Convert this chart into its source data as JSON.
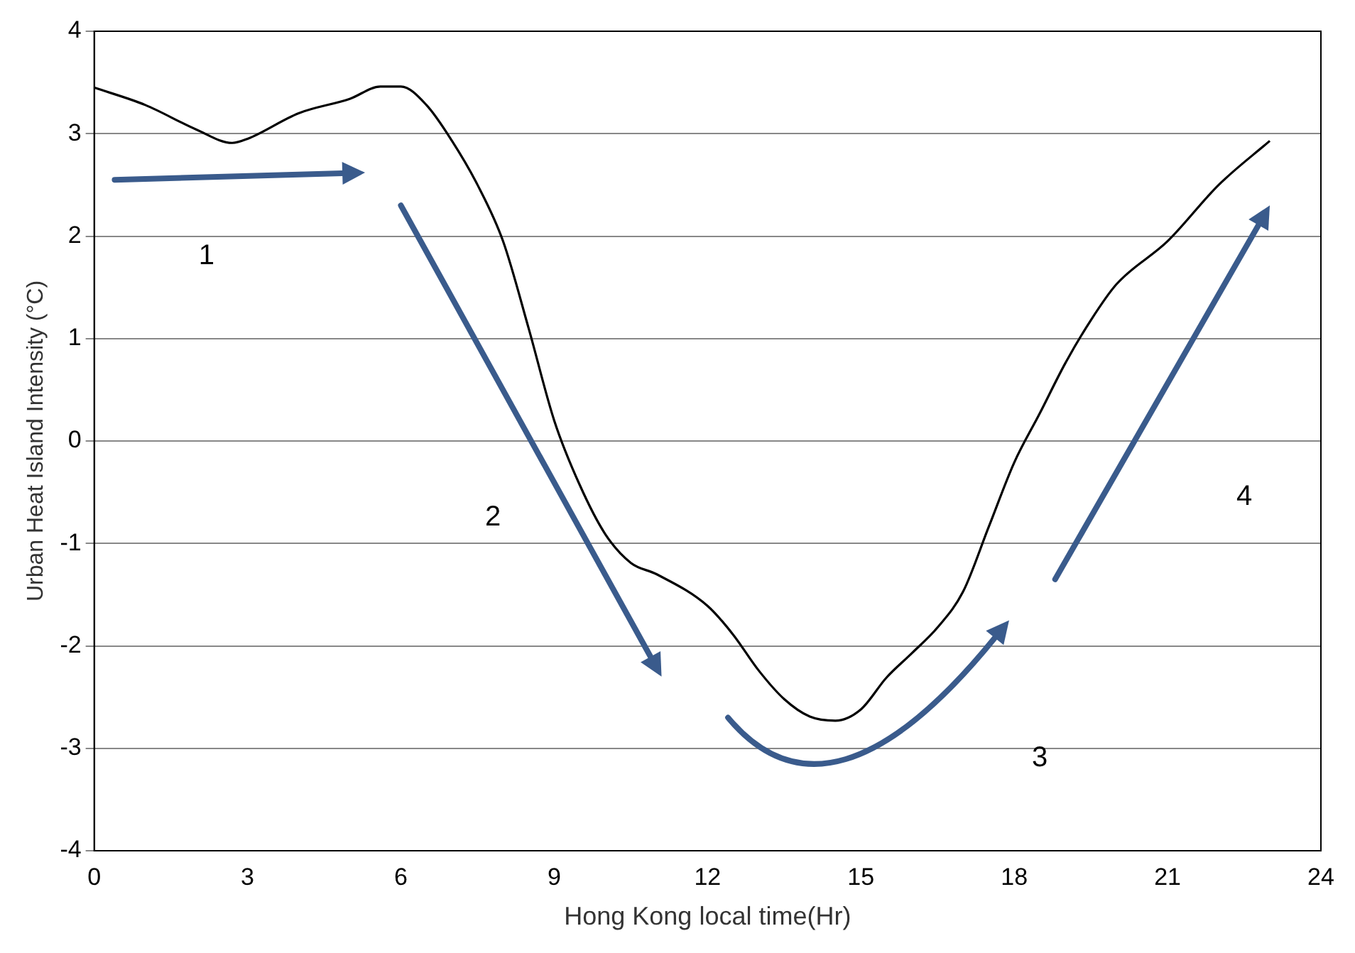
{
  "chart_data": {
    "type": "line",
    "xlabel": "Hong Kong local time(Hr)",
    "ylabel": "Urban Heat Island Intensity (°C)",
    "x": [
      0,
      1,
      2,
      2.7,
      3,
      4,
      5,
      5.6,
      6,
      6.5,
      7,
      7.5,
      8,
      8.5,
      9,
      9.5,
      10,
      10.5,
      11,
      12,
      12.5,
      13,
      13.5,
      14,
      14.5,
      15,
      15.5,
      16,
      16.5,
      17,
      17.5,
      18,
      18.5,
      19,
      19.5,
      20,
      21,
      22,
      23
    ],
    "series": [
      {
        "color": "#000000",
        "values": [
          3.45,
          3.28,
          3.04,
          2.91,
          2.95,
          3.2,
          3.34,
          3.46,
          3.46,
          3.28,
          2.93,
          2.5,
          1.95,
          1.1,
          0.2,
          -0.43,
          -0.91,
          -1.19,
          -1.3,
          -1.61,
          -1.89,
          -2.24,
          -2.52,
          -2.69,
          -2.73,
          -2.62,
          -2.31,
          -2.07,
          -1.82,
          -1.47,
          -0.84,
          -0.21,
          0.27,
          0.76,
          1.18,
          1.53,
          1.95,
          2.5,
          2.93
        ]
      }
    ],
    "xlim": [
      0,
      24
    ],
    "xticks": [
      0,
      3,
      6,
      9,
      12,
      15,
      18,
      21,
      24
    ],
    "ylim": [
      -4,
      4
    ],
    "yticks": [
      -4,
      -3,
      -2,
      -1,
      0,
      1,
      2,
      3,
      4
    ],
    "grid": "y",
    "legend": false,
    "marker": "none",
    "line_style": "solid",
    "annotations": [
      "1",
      "2",
      "3",
      "4"
    ]
  }
}
